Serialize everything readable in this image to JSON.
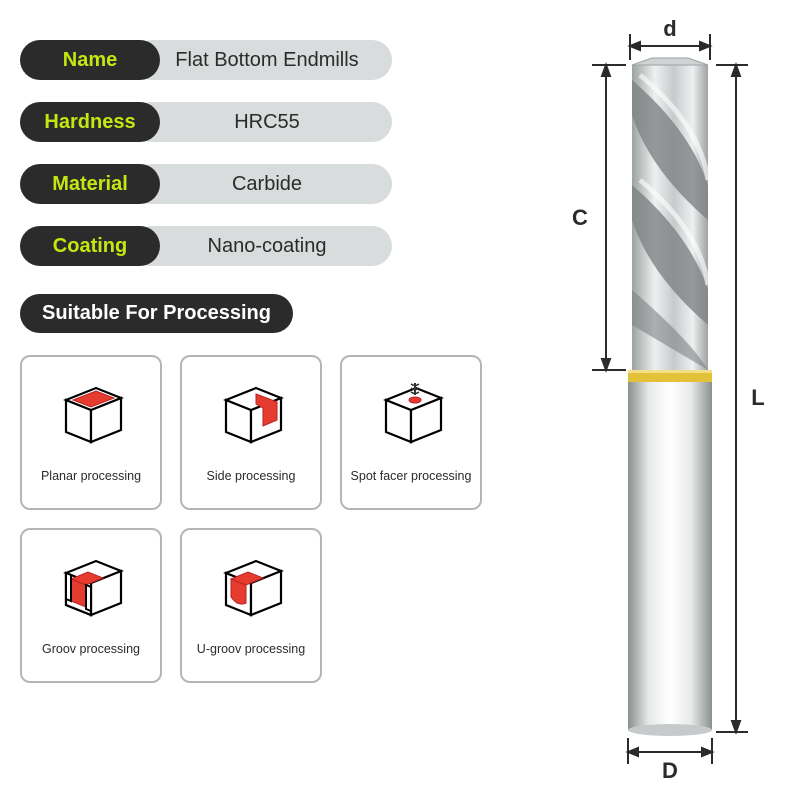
{
  "specs": [
    {
      "label": "Name",
      "value": "Flat Bottom Endmills"
    },
    {
      "label": "Hardness",
      "value": "HRC55"
    },
    {
      "label": "Material",
      "value": "Carbide"
    },
    {
      "label": "Coating",
      "value": "Nano-coating"
    }
  ],
  "section_header": "Suitable For Processing",
  "processes": [
    {
      "caption": "Planar processing",
      "kind": "planar"
    },
    {
      "caption": "Side processing",
      "kind": "side"
    },
    {
      "caption": "Spot facer processing",
      "kind": "spotfacer"
    },
    {
      "caption": "Groov processing",
      "kind": "groove"
    },
    {
      "caption": "U-groov processing",
      "kind": "ugroove"
    }
  ],
  "diagram": {
    "labels": {
      "d": "d",
      "D": "D",
      "C": "C",
      "L": "L"
    },
    "colors": {
      "dim_line": "#2b2b2b",
      "text": "#2b2b2b",
      "box_stroke": "#000000",
      "box_fill": "#ffffff",
      "red": "#e63c2f",
      "tool_light": "#e8eaea",
      "tool_mid": "#b8bcbd",
      "tool_dark": "#8a8f90",
      "ring": "#e3c23a"
    },
    "style": {
      "label_fontsize": 22,
      "caption_fontsize": 12.5,
      "pill_label_fontsize": 20,
      "pill_label_color": "#c5e610",
      "pill_bg": "#2b2b2b",
      "value_bg": "#d9dcdc",
      "card_border": "#b5b5b5"
    }
  }
}
